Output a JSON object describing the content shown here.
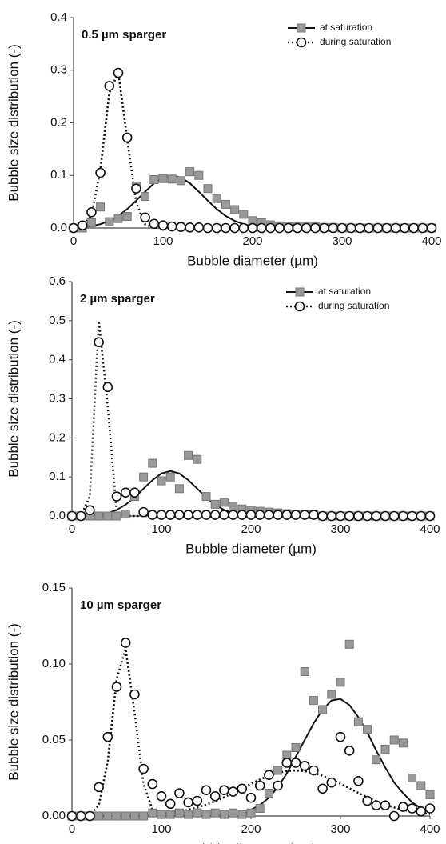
{
  "chart_data": [
    {
      "type": "scatter",
      "title": "0.5 µm sparger",
      "x_label": "Bubble diameter (µm)",
      "y_label": "Bubble size distribution (-)",
      "x": [
        0,
        10,
        20,
        30,
        40,
        50,
        60,
        70,
        80,
        90,
        100,
        110,
        120,
        130,
        140,
        150,
        160,
        170,
        180,
        190,
        200,
        210,
        220,
        230,
        240,
        250,
        260,
        270,
        280,
        290,
        300,
        310,
        320,
        330,
        340,
        350,
        360,
        370,
        380,
        390,
        400
      ],
      "xlim": [
        0,
        400
      ],
      "xticks": [
        0,
        100,
        200,
        300,
        400
      ],
      "ylim": [
        0,
        0.4
      ],
      "yticks": [
        {
          "value": 0,
          "label": "0.0"
        },
        0.1,
        0.2,
        0.3,
        0.4
      ],
      "legend": "upper right",
      "series": [
        {
          "name": "at saturation",
          "marker": "square",
          "color": "#999999",
          "line": "solid",
          "values": [
            0,
            0,
            0.01,
            0.04,
            0.012,
            0.018,
            0.022,
            0.08,
            0.06,
            0.092,
            0.094,
            0.093,
            0.09,
            0.107,
            0.1,
            0.075,
            0.056,
            0.045,
            0.035,
            0.026,
            0.014,
            0.01,
            0.006,
            0.004,
            0.003,
            0.002,
            0.002,
            0.002,
            0.001,
            0.001,
            0,
            0,
            0,
            0,
            0,
            0,
            0,
            0,
            0,
            0,
            0
          ],
          "fit": [
            0.0007,
            0.0017,
            0.0037,
            0.0073,
            0.0135,
            0.023,
            0.036,
            0.052,
            0.069,
            0.085,
            0.096,
            0.1,
            0.096,
            0.085,
            0.069,
            0.052,
            0.036,
            0.023,
            0.0135,
            0.0073,
            0.0037,
            0.0017,
            0.0007,
            0.0003,
            0.0001,
            0,
            0,
            0,
            0,
            0,
            0,
            0,
            0,
            0,
            0,
            0,
            0,
            0,
            0,
            0,
            0
          ]
        },
        {
          "name": "during saturation",
          "marker": "circle",
          "color": "#ffffff",
          "line": "dotted",
          "values": [
            0,
            0.005,
            0.03,
            0.105,
            0.27,
            0.295,
            0.172,
            0.075,
            0.02,
            0.008,
            0.005,
            0.003,
            0.002,
            0.001,
            0.001,
            0,
            0,
            0,
            0,
            0,
            0,
            0,
            0,
            0,
            0,
            0,
            0,
            0,
            0,
            0,
            0,
            0,
            0,
            0,
            0,
            0,
            0,
            0,
            0,
            0,
            0
          ],
          "fit": [
            0.0001,
            0.0026,
            0.024,
            0.112,
            0.257,
            0.296,
            0.169,
            0.048,
            0.007,
            0.0005,
            0,
            0,
            0,
            0,
            0,
            0,
            0,
            0,
            0,
            0,
            0,
            0,
            0,
            0,
            0,
            0,
            0,
            0,
            0,
            0,
            0,
            0,
            0,
            0,
            0,
            0,
            0,
            0,
            0,
            0,
            0
          ]
        }
      ]
    },
    {
      "type": "scatter",
      "title": "2 µm sparger",
      "x_label": "Bubble diameter (µm)",
      "y_label": "Bubble size distribution (-)",
      "x": [
        0,
        10,
        20,
        30,
        40,
        50,
        60,
        70,
        80,
        90,
        100,
        110,
        120,
        130,
        140,
        150,
        160,
        170,
        180,
        190,
        200,
        210,
        220,
        230,
        240,
        250,
        260,
        270,
        280,
        290,
        300,
        310,
        320,
        330,
        340,
        350,
        360,
        370,
        380,
        390,
        400
      ],
      "xlim": [
        0,
        400
      ],
      "xticks": [
        0,
        100,
        200,
        300,
        400
      ],
      "ylim": [
        0,
        0.6
      ],
      "yticks": [
        {
          "value": 0,
          "label": "0.0"
        },
        0.1,
        0.2,
        0.3,
        0.4,
        0.5,
        0.6
      ],
      "legend": "upper right",
      "series": [
        {
          "name": "at saturation",
          "marker": "square",
          "color": "#999999",
          "line": "solid",
          "values": [
            0,
            0,
            0,
            0,
            0,
            0,
            0.005,
            0.05,
            0.1,
            0.135,
            0.09,
            0.1,
            0.07,
            0.155,
            0.145,
            0.05,
            0.03,
            0.035,
            0.025,
            0.018,
            0.015,
            0.012,
            0.01,
            0.008,
            0.006,
            0.005,
            0.004,
            0.003,
            0,
            0,
            0,
            0,
            0,
            0,
            0,
            0,
            0,
            0,
            0,
            0,
            0
          ],
          "fit": [
            0.0002,
            0.0005,
            0.0013,
            0.0033,
            0.0076,
            0.0156,
            0.029,
            0.047,
            0.07,
            0.092,
            0.109,
            0.115,
            0.109,
            0.092,
            0.07,
            0.047,
            0.029,
            0.0156,
            0.0076,
            0.0033,
            0.0013,
            0.0005,
            0.0002,
            0,
            0,
            0,
            0,
            0,
            0,
            0,
            0,
            0,
            0,
            0,
            0,
            0,
            0,
            0,
            0,
            0,
            0
          ]
        },
        {
          "name": "during saturation",
          "marker": "circle",
          "color": "#ffffff",
          "line": "dotted",
          "values": [
            0,
            0,
            0.015,
            0.445,
            0.33,
            0.05,
            0.06,
            0.06,
            0.01,
            0.003,
            0.003,
            0.003,
            0.003,
            0.003,
            0.003,
            0.003,
            0.003,
            0.003,
            0.003,
            0.003,
            0.003,
            0.003,
            0.003,
            0.003,
            0.003,
            0.003,
            0.003,
            0.003,
            0,
            0,
            0,
            0,
            0,
            0,
            0,
            0,
            0,
            0,
            0,
            0,
            0
          ],
          "fit": [
            0,
            0.0003,
            0.05,
            0.5,
            0.28,
            0.01,
            0,
            0,
            0,
            0,
            0,
            0,
            0,
            0,
            0,
            0,
            0,
            0,
            0,
            0,
            0,
            0,
            0,
            0,
            0,
            0,
            0,
            0,
            0,
            0,
            0,
            0,
            0,
            0,
            0,
            0,
            0,
            0,
            0,
            0,
            0
          ]
        }
      ]
    },
    {
      "type": "scatter",
      "title": "10 µm sparger",
      "x_label": "Bubble diameter (µm)",
      "y_label": "Bubble size distribution (-)",
      "x": [
        0,
        10,
        20,
        30,
        40,
        50,
        60,
        70,
        80,
        90,
        100,
        110,
        120,
        130,
        140,
        150,
        160,
        170,
        180,
        190,
        200,
        210,
        220,
        230,
        240,
        250,
        260,
        270,
        280,
        290,
        300,
        310,
        320,
        330,
        340,
        350,
        360,
        370,
        380,
        390,
        400
      ],
      "xlim": [
        0,
        400
      ],
      "xticks": [
        0,
        100,
        200,
        300,
        400
      ],
      "ylim": [
        0,
        0.15
      ],
      "yticks": [
        {
          "value": 0,
          "label": "0.00"
        },
        0.05,
        {
          "value": 0.1,
          "label": "0.10"
        },
        0.15
      ],
      "series": [
        {
          "marker": "square",
          "color": "#999999",
          "line": "solid",
          "values": [
            0,
            0,
            0,
            0,
            0,
            0,
            0,
            0,
            0,
            0.002,
            0.001,
            0.001,
            0.002,
            0.001,
            0.002,
            0.001,
            0.002,
            0.001,
            0.002,
            0.001,
            0.002,
            0.005,
            0.015,
            0.03,
            0.04,
            0.045,
            0.095,
            0.076,
            0.07,
            0.08,
            0.088,
            0.113,
            0.062,
            0.057,
            0.037,
            0.044,
            0.05,
            0.048,
            0.025,
            0.02,
            0.014
          ],
          "fit": [
            0,
            0,
            0,
            0,
            0,
            0,
            0,
            0,
            0,
            0,
            0,
            0,
            0,
            0,
            0,
            0,
            0,
            0,
            0,
            0,
            0.0041,
            0.0072,
            0.012,
            0.019,
            0.028,
            0.039,
            0.05,
            0.061,
            0.07,
            0.076,
            0.077,
            0.073,
            0.065,
            0.055,
            0.043,
            0.032,
            0.022,
            0.015,
            0.009,
            0.005,
            0.0028
          ]
        },
        {
          "marker": "circle",
          "color": "#ffffff",
          "line": "dotted",
          "values": [
            0,
            0,
            0,
            0.019,
            0.052,
            0.085,
            0.114,
            0.08,
            0.031,
            0.021,
            0.013,
            0.008,
            0.015,
            0.009,
            0.01,
            0.017,
            0.013,
            0.017,
            0.016,
            0.018,
            0.012,
            0.02,
            0.027,
            0.02,
            0.035,
            0.035,
            0.033,
            0.03,
            0.018,
            0.022,
            0.052,
            0.043,
            0.023,
            0.01,
            0.007,
            0.007,
            0,
            0.006,
            0.005,
            0.003,
            0.005
          ],
          "fit": [
            0,
            0,
            0.0007,
            0.007,
            0.036,
            0.09,
            0.11,
            0.068,
            0.021,
            0.004,
            0.0015,
            0.002,
            0.0029,
            0.0041,
            0.0056,
            0.0075,
            0.0097,
            0.0123,
            0.0152,
            0.0182,
            0.0212,
            0.024,
            0.0265,
            0.0284,
            0.0296,
            0.03,
            0.0296,
            0.0284,
            0.0265,
            0.024,
            0.0212,
            0.0182,
            0.0152,
            0.0123,
            0.0097,
            0.0075,
            0.0056,
            0.0041,
            0.0029,
            0.002,
            0.0013
          ]
        }
      ]
    }
  ]
}
